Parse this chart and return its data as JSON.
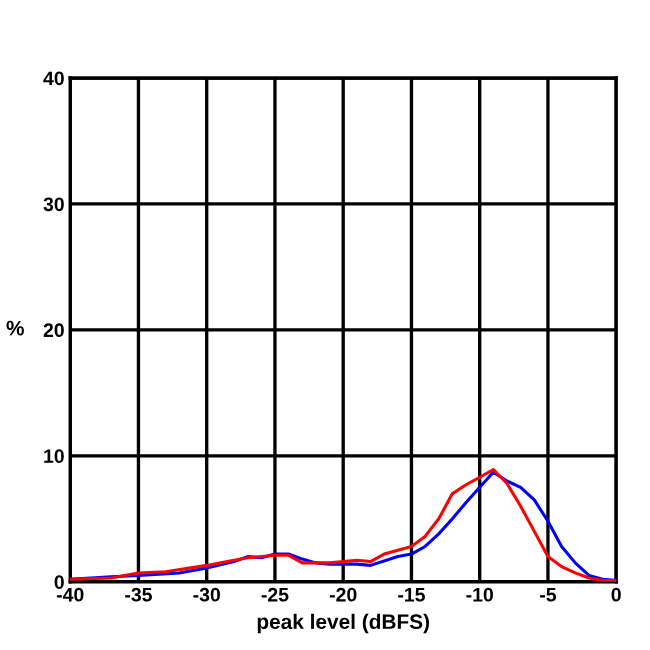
{
  "chart_data": {
    "type": "line",
    "xlabel": "peak level (dBFS)",
    "ylabel": "%",
    "xlim": [
      -40,
      0
    ],
    "ylim": [
      0,
      40
    ],
    "xticks": [
      -40,
      -35,
      -30,
      -25,
      -20,
      -15,
      -10,
      -5,
      0
    ],
    "yticks": [
      0,
      10,
      20,
      30,
      40
    ],
    "grid": true,
    "line_style": "solid",
    "marker": "none",
    "series": [
      {
        "color": "#0000ff",
        "x": [
          -40,
          -37,
          -35,
          -32,
          -30,
          -28,
          -27,
          -26,
          -25,
          -24,
          -23,
          -22,
          -21,
          -19,
          -18,
          -16,
          -15,
          -14,
          -13,
          -12,
          -11,
          -10,
          -9,
          -8,
          -7,
          -6,
          -5,
          -4,
          -3,
          -2,
          -1,
          0
        ],
        "values": [
          0.2,
          0.4,
          0.5,
          0.7,
          1.1,
          1.6,
          2.0,
          1.9,
          2.2,
          2.2,
          1.8,
          1.5,
          1.4,
          1.4,
          1.3,
          2.0,
          2.2,
          2.8,
          3.8,
          5.0,
          6.3,
          7.5,
          8.7,
          8.0,
          7.5,
          6.5,
          4.8,
          2.8,
          1.5,
          0.5,
          0.2,
          0.1
        ]
      },
      {
        "color": "#ff0000",
        "x": [
          -40,
          -37,
          -35,
          -33,
          -30,
          -28,
          -27,
          -25,
          -24,
          -23,
          -21,
          -19,
          -18,
          -17,
          -15,
          -14,
          -13,
          -12,
          -11,
          -10,
          -9,
          -8,
          -7,
          -6,
          -5,
          -4,
          -3,
          -2,
          -1,
          0
        ],
        "values": [
          0.2,
          0.3,
          0.7,
          0.8,
          1.3,
          1.7,
          1.9,
          2.1,
          2.1,
          1.5,
          1.5,
          1.7,
          1.6,
          2.2,
          2.8,
          3.6,
          5.0,
          7.0,
          7.7,
          8.3,
          8.9,
          7.8,
          6.0,
          4.0,
          2.0,
          1.2,
          0.7,
          0.3,
          0.1,
          0.1
        ]
      }
    ]
  }
}
